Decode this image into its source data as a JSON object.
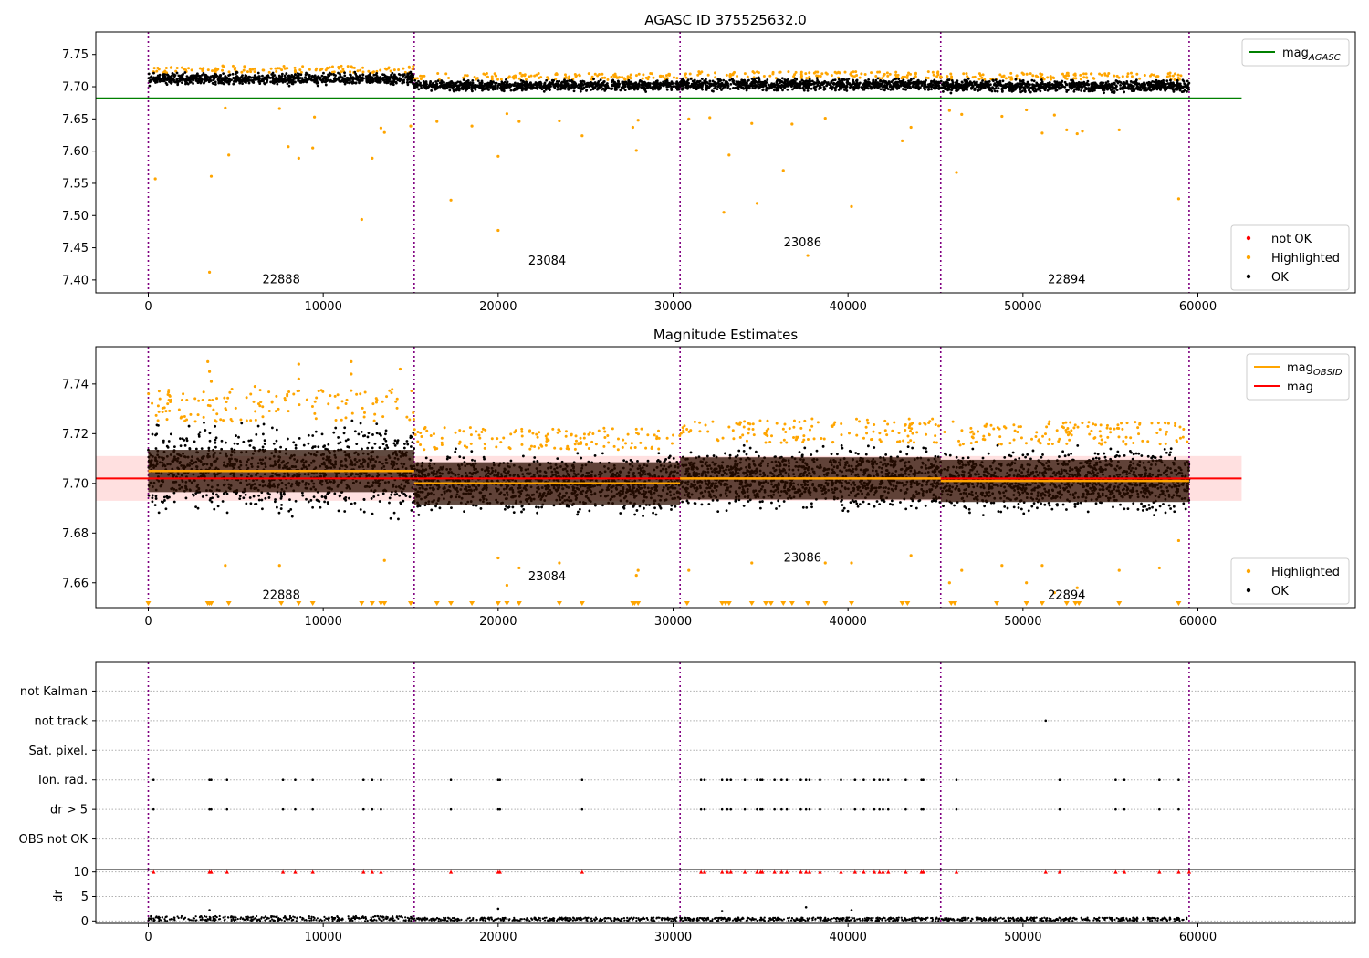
{
  "chart_data": [
    {
      "type": "scatter",
      "title": "AGASC ID 375525632.0",
      "xlim": [
        -3000,
        69000
      ],
      "ylim": [
        7.38,
        7.785
      ],
      "xticks": [
        0,
        10000,
        20000,
        30000,
        40000,
        50000,
        60000
      ],
      "yticks": [
        7.4,
        7.45,
        7.5,
        7.55,
        7.6,
        7.65,
        7.7,
        7.75
      ],
      "grid": false,
      "obs_boundaries": [
        0,
        15200,
        30400,
        45300,
        59500
      ],
      "obs_labels": [
        {
          "text": "22888",
          "x": 7600,
          "y": 7.395
        },
        {
          "text": "23084",
          "x": 22800,
          "y": 7.424
        },
        {
          "text": "23086",
          "x": 37400,
          "y": 7.452
        },
        {
          "text": "22894",
          "x": 52500,
          "y": 7.395
        }
      ],
      "reference_lines": [
        {
          "name": "mag_AGASC",
          "value": 7.682,
          "x_range": [
            -3000,
            62500
          ],
          "color": "#008000"
        }
      ],
      "band_segments": [
        {
          "x": [
            0,
            15200
          ],
          "center": 7.712,
          "spread": 0.012
        },
        {
          "x": [
            15200,
            30400
          ],
          "center": 7.702,
          "spread": 0.011
        },
        {
          "x": [
            30400,
            45300
          ],
          "center": 7.703,
          "spread": 0.012
        },
        {
          "x": [
            45300,
            59500
          ],
          "center": 7.701,
          "spread": 0.012
        }
      ],
      "highlighted_points": [
        [
          400,
          7.557
        ],
        [
          3500,
          7.412
        ],
        [
          3600,
          7.561
        ],
        [
          4400,
          7.667
        ],
        [
          4600,
          7.594
        ],
        [
          7500,
          7.666
        ],
        [
          8000,
          7.607
        ],
        [
          8600,
          7.589
        ],
        [
          9400,
          7.605
        ],
        [
          9500,
          7.653
        ],
        [
          12200,
          7.494
        ],
        [
          12800,
          7.589
        ],
        [
          13300,
          7.636
        ],
        [
          13500,
          7.629
        ],
        [
          15000,
          7.639
        ],
        [
          16500,
          7.646
        ],
        [
          17300,
          7.524
        ],
        [
          18500,
          7.639
        ],
        [
          20000,
          7.592
        ],
        [
          20000,
          7.477
        ],
        [
          20500,
          7.658
        ],
        [
          21200,
          7.646
        ],
        [
          23500,
          7.647
        ],
        [
          24800,
          7.624
        ],
        [
          27700,
          7.637
        ],
        [
          27900,
          7.601
        ],
        [
          28000,
          7.648
        ],
        [
          30900,
          7.65
        ],
        [
          32100,
          7.652
        ],
        [
          32900,
          7.505
        ],
        [
          33200,
          7.594
        ],
        [
          34500,
          7.643
        ],
        [
          34800,
          7.519
        ],
        [
          36300,
          7.57
        ],
        [
          36800,
          7.642
        ],
        [
          37700,
          7.438
        ],
        [
          38700,
          7.651
        ],
        [
          40200,
          7.514
        ],
        [
          43100,
          7.616
        ],
        [
          43600,
          7.637
        ],
        [
          45800,
          7.663
        ],
        [
          46200,
          7.567
        ],
        [
          46500,
          7.657
        ],
        [
          48800,
          7.654
        ],
        [
          50200,
          7.664
        ],
        [
          51100,
          7.628
        ],
        [
          51800,
          7.656
        ],
        [
          52500,
          7.633
        ],
        [
          53100,
          7.627
        ],
        [
          53400,
          7.631
        ],
        [
          55500,
          7.633
        ],
        [
          58900,
          7.526
        ]
      ],
      "legend": [
        {
          "label": "mag_AGASC",
          "marker": "line",
          "color": "#008000"
        },
        {
          "label": "not OK",
          "marker": "dot",
          "color": "#ff0000"
        },
        {
          "label": "Highlighted",
          "marker": "dot",
          "color": "#ffa500"
        },
        {
          "label": "OK",
          "marker": "dot",
          "color": "#000000"
        }
      ]
    },
    {
      "type": "scatter",
      "title": "Magnitude Estimates",
      "xlim": [
        -3000,
        69000
      ],
      "ylim": [
        7.65,
        7.755
      ],
      "xticks": [
        0,
        10000,
        20000,
        30000,
        40000,
        50000,
        60000
      ],
      "yticks": [
        7.66,
        7.68,
        7.7,
        7.72,
        7.74
      ],
      "grid": false,
      "obs_boundaries": [
        0,
        15200,
        30400,
        45300,
        59500
      ],
      "obs_labels": [
        {
          "text": "22888",
          "x": 7600,
          "y": 7.6535
        },
        {
          "text": "23084",
          "x": 22800,
          "y": 7.661
        },
        {
          "text": "23086",
          "x": 37400,
          "y": 7.6685
        },
        {
          "text": "22894",
          "x": 52500,
          "y": 7.6535
        }
      ],
      "mag_band": {
        "center": 7.702,
        "low": 7.693,
        "high": 7.711,
        "x_range": [
          -3000,
          62500
        ]
      },
      "mag_obsid": [
        {
          "x": [
            0,
            15200
          ],
          "value": 7.705
        },
        {
          "x": [
            15200,
            30400
          ],
          "value": 7.7
        },
        {
          "x": [
            30400,
            45300
          ],
          "value": 7.702
        },
        {
          "x": [
            45300,
            59500
          ],
          "value": 7.701
        }
      ],
      "band_segments": [
        {
          "x": [
            0,
            15200
          ],
          "center": 7.705,
          "spread": 0.022
        },
        {
          "x": [
            15200,
            30400
          ],
          "center": 7.7,
          "spread": 0.015
        },
        {
          "x": [
            30400,
            45300
          ],
          "center": 7.702,
          "spread": 0.016
        },
        {
          "x": [
            45300,
            59500
          ],
          "center": 7.701,
          "spread": 0.016
        }
      ],
      "highlighted_points": [
        [
          3400,
          7.749
        ],
        [
          3500,
          7.745
        ],
        [
          3600,
          7.741
        ],
        [
          6100,
          7.739
        ],
        [
          8600,
          7.748
        ],
        [
          8600,
          7.742
        ],
        [
          11600,
          7.749
        ],
        [
          11600,
          7.744
        ],
        [
          14400,
          7.746
        ],
        [
          4400,
          7.667
        ],
        [
          7500,
          7.667
        ],
        [
          13500,
          7.669
        ],
        [
          20000,
          7.67
        ],
        [
          20500,
          7.659
        ],
        [
          21200,
          7.666
        ],
        [
          23500,
          7.668
        ],
        [
          27900,
          7.663
        ],
        [
          28000,
          7.665
        ],
        [
          30900,
          7.665
        ],
        [
          34500,
          7.668
        ],
        [
          38700,
          7.668
        ],
        [
          40200,
          7.668
        ],
        [
          43600,
          7.671
        ],
        [
          45800,
          7.66
        ],
        [
          46500,
          7.665
        ],
        [
          48800,
          7.667
        ],
        [
          50200,
          7.66
        ],
        [
          51100,
          7.667
        ],
        [
          51800,
          7.656
        ],
        [
          53100,
          7.658
        ],
        [
          55500,
          7.665
        ],
        [
          57800,
          7.666
        ],
        [
          58900,
          7.677
        ]
      ],
      "clipped_markers_x": [
        0,
        3400,
        3500,
        3600,
        4600,
        7600,
        8600,
        9400,
        12200,
        12800,
        13300,
        13500,
        15000,
        16500,
        17300,
        18500,
        20000,
        20500,
        21200,
        23500,
        24800,
        27700,
        27800,
        28000,
        30800,
        32800,
        33000,
        33200,
        34500,
        35300,
        35600,
        36300,
        36800,
        37700,
        38700,
        40200,
        43100,
        43400,
        45900,
        46100,
        48500,
        50200,
        51100,
        52500,
        53000,
        53200,
        55500,
        58900
      ],
      "legend": [
        {
          "label": "mag_OBSID",
          "marker": "line",
          "color": "#ffa500"
        },
        {
          "label": "mag",
          "marker": "line",
          "color": "#ff0000"
        },
        {
          "label": "Highlighted",
          "marker": "dot",
          "color": "#ffa500"
        },
        {
          "label": "OK",
          "marker": "dot",
          "color": "#000000"
        }
      ]
    },
    {
      "type": "scatter",
      "title": "",
      "xlim": [
        -3000,
        69000
      ],
      "xticks": [
        0,
        10000,
        20000,
        30000,
        40000,
        50000,
        60000
      ],
      "obs_boundaries": [
        0,
        15200,
        30400,
        45300,
        59500
      ],
      "flag_categories": [
        "not Kalman",
        "not track",
        "Sat. pixel.",
        "Ion. rad.",
        "dr > 5",
        "OBS not OK"
      ],
      "flag_points": {
        "not Kalman": [],
        "not track": [
          51300
        ],
        "Sat. pixel.": [],
        "Ion. rad.": [
          300,
          3500,
          3600,
          4500,
          7700,
          8400,
          9400,
          12300,
          12800,
          13300,
          17300,
          20000,
          20100,
          24800,
          31600,
          31800,
          32800,
          33100,
          33300,
          34100,
          34800,
          35000,
          35100,
          35800,
          36200,
          36500,
          37300,
          37600,
          37800,
          38400,
          39600,
          40400,
          40900,
          41500,
          41800,
          42000,
          42300,
          43300,
          44200,
          44300,
          46200,
          52100,
          55300,
          55800,
          57800,
          58900
        ],
        "dr > 5": [
          300,
          3500,
          3600,
          4500,
          7700,
          8400,
          9400,
          12300,
          12800,
          13300,
          17300,
          20000,
          20100,
          24800,
          31600,
          31800,
          32800,
          33100,
          33300,
          34100,
          34800,
          35000,
          35100,
          35800,
          36200,
          36500,
          37300,
          37600,
          37800,
          38400,
          39600,
          40400,
          40900,
          41500,
          41800,
          42000,
          42300,
          43300,
          44200,
          44300,
          46200,
          52100,
          55300,
          55800,
          57800,
          58900
        ],
        "OBS not OK": []
      },
      "dr": {
        "ylabel": "dr",
        "ylim": [
          -0.5,
          10.5
        ],
        "yticks": [
          0,
          5,
          10
        ],
        "baseline_max": 1.0,
        "outliers": [
          [
            3500,
            2.2
          ],
          [
            20000,
            2.5
          ],
          [
            32800,
            2.0
          ],
          [
            37600,
            2.8
          ],
          [
            40200,
            2.2
          ]
        ],
        "clipped_red_x": [
          300,
          3500,
          3600,
          4500,
          7700,
          8400,
          9400,
          12300,
          12800,
          13300,
          17300,
          20000,
          20100,
          24800,
          31600,
          31800,
          32800,
          33100,
          33300,
          34100,
          34800,
          35000,
          35100,
          35800,
          36200,
          36500,
          37300,
          37600,
          37800,
          38400,
          39600,
          40400,
          40900,
          41500,
          41800,
          42000,
          42300,
          43300,
          44200,
          44300,
          46200,
          51300,
          52100,
          55300,
          55800,
          57800,
          58900,
          59500
        ]
      }
    }
  ]
}
